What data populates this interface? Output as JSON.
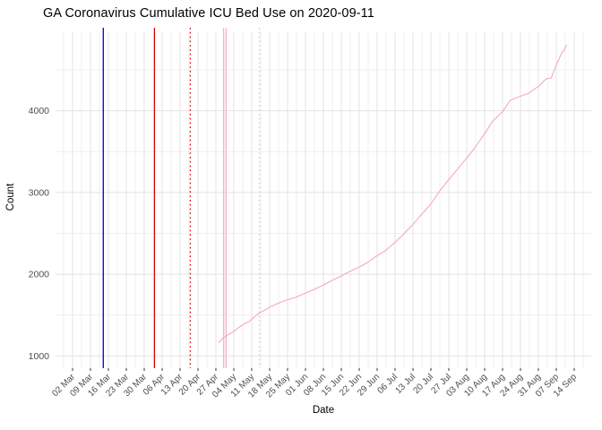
{
  "chart_data": {
    "type": "line",
    "title": "GA Coronavirus Cumulative ICU Bed Use on 2020-09-11",
    "xlabel": "Date",
    "ylabel": "Count",
    "x_ticks": [
      {
        "date": "2020-03-02",
        "label": "02 Mar"
      },
      {
        "date": "2020-03-09",
        "label": "09 Mar"
      },
      {
        "date": "2020-03-16",
        "label": "16 Mar"
      },
      {
        "date": "2020-03-23",
        "label": "23 Mar"
      },
      {
        "date": "2020-03-30",
        "label": "30 Mar"
      },
      {
        "date": "2020-04-06",
        "label": "06 Apr"
      },
      {
        "date": "2020-04-13",
        "label": "13 Apr"
      },
      {
        "date": "2020-04-20",
        "label": "20 Apr"
      },
      {
        "date": "2020-04-27",
        "label": "27 Apr"
      },
      {
        "date": "2020-05-04",
        "label": "04 May"
      },
      {
        "date": "2020-05-11",
        "label": "11 May"
      },
      {
        "date": "2020-05-18",
        "label": "18 May"
      },
      {
        "date": "2020-05-25",
        "label": "25 May"
      },
      {
        "date": "2020-06-01",
        "label": "01 Jun"
      },
      {
        "date": "2020-06-08",
        "label": "08 Jun"
      },
      {
        "date": "2020-06-15",
        "label": "15 Jun"
      },
      {
        "date": "2020-06-22",
        "label": "22 Jun"
      },
      {
        "date": "2020-06-29",
        "label": "29 Jun"
      },
      {
        "date": "2020-07-06",
        "label": "06 Jul"
      },
      {
        "date": "2020-07-13",
        "label": "13 Jul"
      },
      {
        "date": "2020-07-20",
        "label": "20 Jul"
      },
      {
        "date": "2020-07-27",
        "label": "27 Jul"
      },
      {
        "date": "2020-08-03",
        "label": "03 Aug"
      },
      {
        "date": "2020-08-10",
        "label": "10 Aug"
      },
      {
        "date": "2020-08-17",
        "label": "17 Aug"
      },
      {
        "date": "2020-08-24",
        "label": "24 Aug"
      },
      {
        "date": "2020-08-31",
        "label": "31 Aug"
      },
      {
        "date": "2020-09-07",
        "label": "07 Sep"
      },
      {
        "date": "2020-09-14",
        "label": "14 Sep"
      }
    ],
    "y_ticks": [
      {
        "value": 1000,
        "label": "1000"
      },
      {
        "value": 2000,
        "label": "2000"
      },
      {
        "value": 3000,
        "label": "3000"
      },
      {
        "value": 4000,
        "label": "4000"
      }
    ],
    "ylim": [
      850,
      5015
    ],
    "legend": "none",
    "grid": "weekly major + midweek minor verticals, 500-step horizontals, light gray on white",
    "vlines": [
      {
        "date": "2020-03-14",
        "style": "solid",
        "color": "#0000CD"
      },
      {
        "date": "2020-04-03",
        "style": "solid",
        "color": "#DD0000"
      },
      {
        "date": "2020-04-17",
        "style": "dotted",
        "color": "#DD0000"
      },
      {
        "date": "2020-04-30",
        "style": "solid",
        "color": "#F9B4C4"
      },
      {
        "date": "2020-05-01",
        "style": "solid",
        "color": "#F9B4C4"
      },
      {
        "date": "2020-05-14",
        "style": "dotted",
        "color": "#F9B4C4"
      }
    ],
    "series": [
      {
        "name": "cumulative-icu-bed-use",
        "color": "#F7A8BC",
        "points": [
          [
            "2020-04-28",
            1160
          ],
          [
            "2020-04-29",
            1190
          ],
          [
            "2020-04-30",
            1225
          ],
          [
            "2020-05-02",
            1262
          ],
          [
            "2020-05-04",
            1300
          ],
          [
            "2020-05-06",
            1350
          ],
          [
            "2020-05-08",
            1390
          ],
          [
            "2020-05-10",
            1420
          ],
          [
            "2020-05-12",
            1478
          ],
          [
            "2020-05-14",
            1525
          ],
          [
            "2020-05-16",
            1558
          ],
          [
            "2020-05-18",
            1595
          ],
          [
            "2020-05-21",
            1640
          ],
          [
            "2020-05-24",
            1678
          ],
          [
            "2020-05-28",
            1715
          ],
          [
            "2020-06-01",
            1768
          ],
          [
            "2020-06-04",
            1808
          ],
          [
            "2020-06-08",
            1868
          ],
          [
            "2020-06-11",
            1918
          ],
          [
            "2020-06-15",
            1978
          ],
          [
            "2020-06-18",
            2028
          ],
          [
            "2020-06-22",
            2088
          ],
          [
            "2020-06-25",
            2138
          ],
          [
            "2020-06-29",
            2228
          ],
          [
            "2020-07-02",
            2282
          ],
          [
            "2020-07-06",
            2388
          ],
          [
            "2020-07-09",
            2480
          ],
          [
            "2020-07-13",
            2608
          ],
          [
            "2020-07-16",
            2720
          ],
          [
            "2020-07-20",
            2858
          ],
          [
            "2020-07-23",
            2998
          ],
          [
            "2020-07-27",
            3158
          ],
          [
            "2020-07-30",
            3270
          ],
          [
            "2020-08-03",
            3420
          ],
          [
            "2020-08-06",
            3540
          ],
          [
            "2020-08-10",
            3718
          ],
          [
            "2020-08-13",
            3868
          ],
          [
            "2020-08-17",
            3988
          ],
          [
            "2020-08-20",
            4128
          ],
          [
            "2020-08-24",
            4178
          ],
          [
            "2020-08-27",
            4210
          ],
          [
            "2020-08-31",
            4298
          ],
          [
            "2020-09-03",
            4388
          ],
          [
            "2020-09-05",
            4400
          ],
          [
            "2020-09-07",
            4558
          ],
          [
            "2020-09-09",
            4698
          ],
          [
            "2020-09-10",
            4738
          ],
          [
            "2020-09-11",
            4808
          ]
        ]
      }
    ],
    "colors": {
      "panel_background": "#FFFFFF",
      "grid_major": "#E3E3E3",
      "grid_minor": "#EFEFEF",
      "tick_text": "#4D4D4D",
      "tick_mark": "#333333"
    }
  }
}
